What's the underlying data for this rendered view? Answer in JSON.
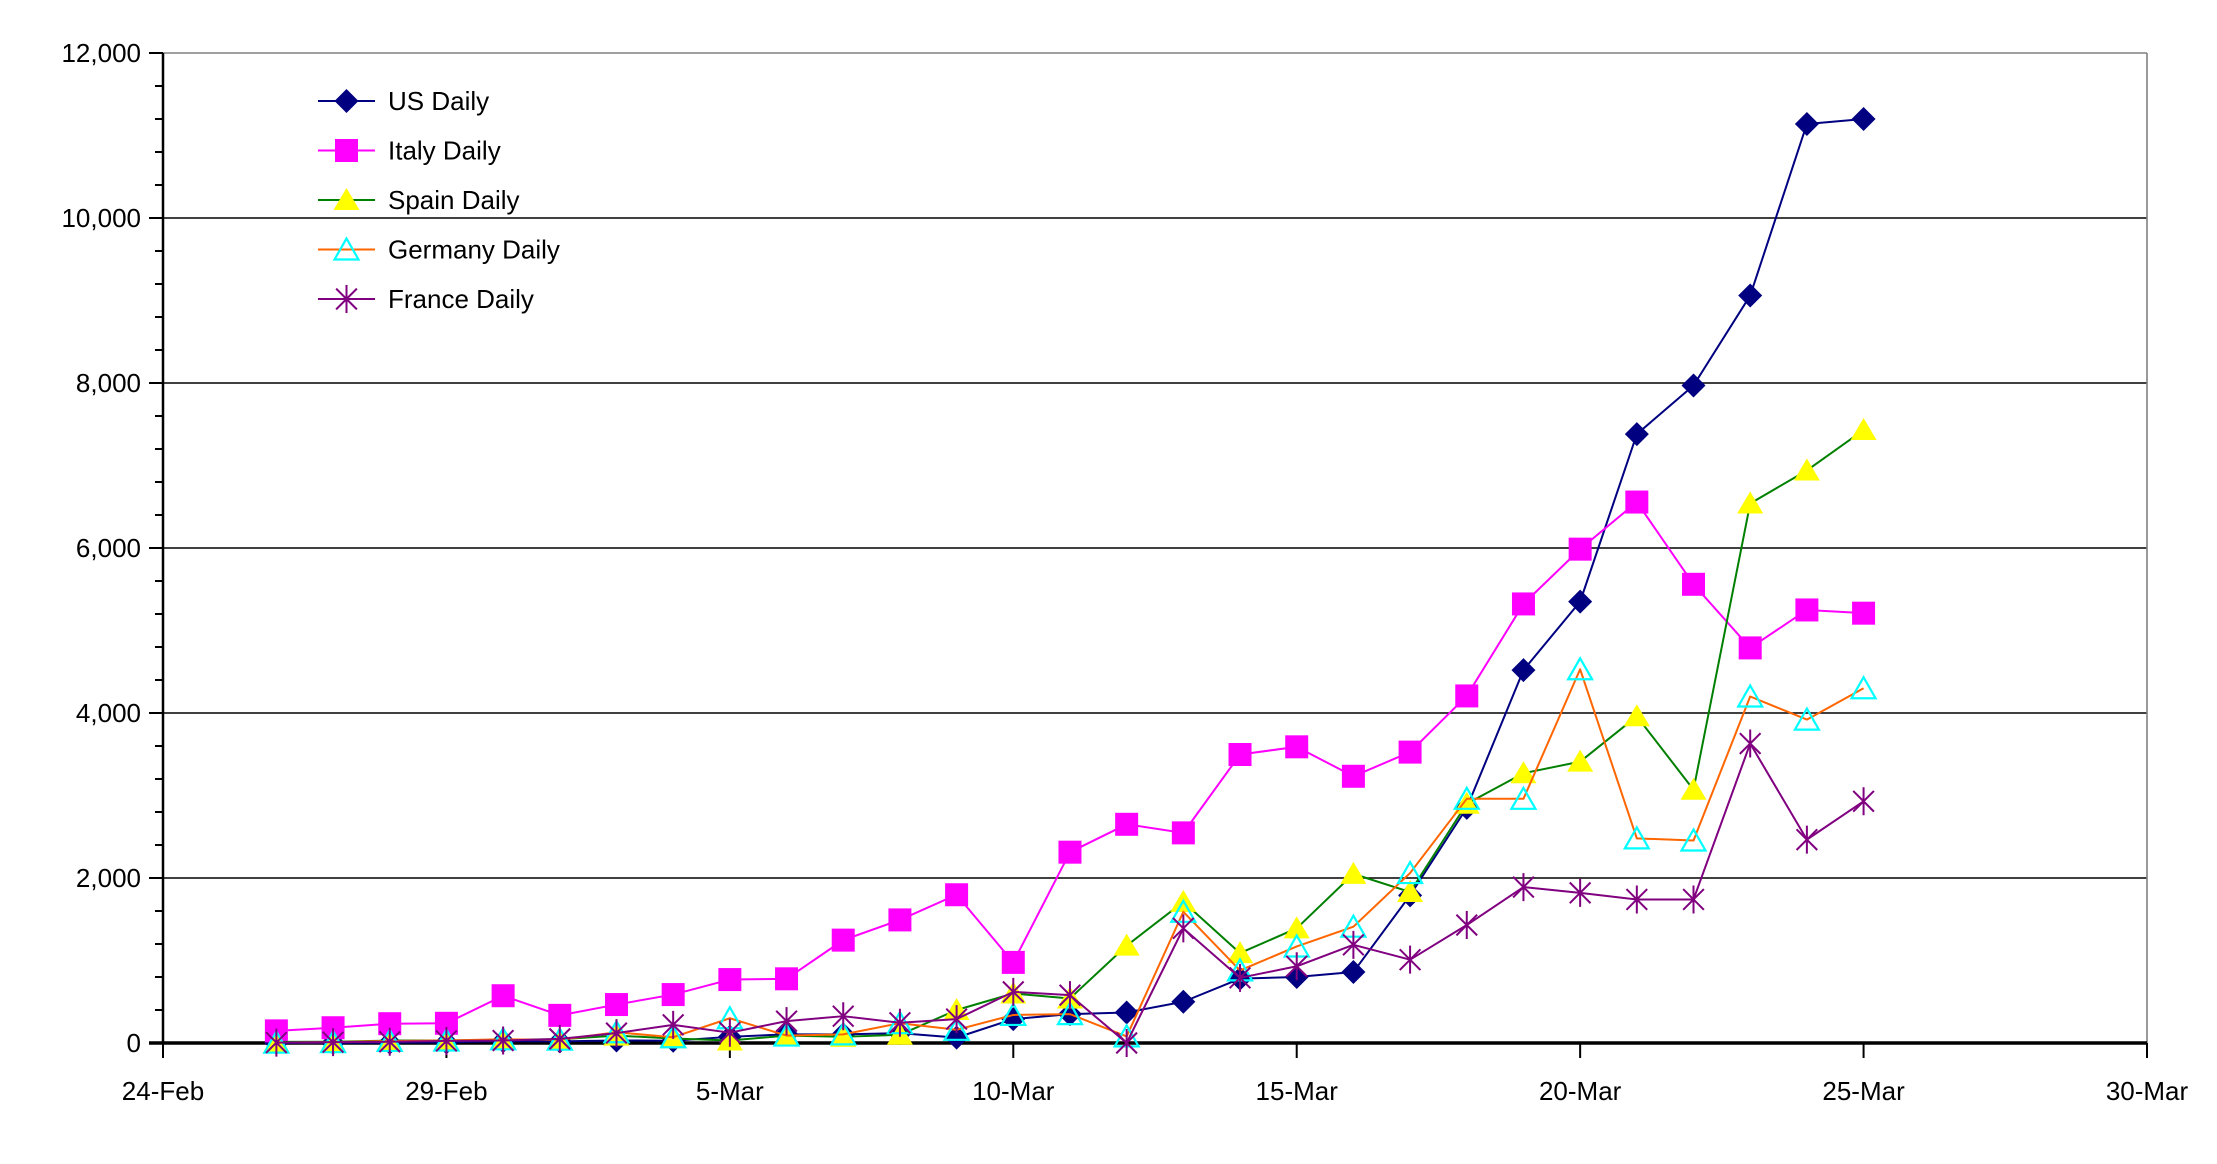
{
  "chart_data": {
    "type": "line",
    "title": "",
    "xlabel": "",
    "ylabel": "",
    "grid": true,
    "legend_position": "upper-left",
    "ylim": [
      0,
      12000
    ],
    "y_major_step": 2000,
    "y_minor_step": 400,
    "y_tick_labels": [
      "0",
      "2,000",
      "4,000",
      "6,000",
      "8,000",
      "10,000",
      "12,000"
    ],
    "x_tick_labels": [
      "24-Feb",
      "29-Feb",
      "5-Mar",
      "10-Mar",
      "15-Mar",
      "20-Mar",
      "25-Mar",
      "30-Mar"
    ],
    "x_total_days": 35,
    "data_start_day_offset": 2,
    "dates": [
      "26-Feb",
      "27-Feb",
      "28-Feb",
      "29-Feb",
      "1-Mar",
      "2-Mar",
      "3-Mar",
      "4-Mar",
      "5-Mar",
      "6-Mar",
      "7-Mar",
      "8-Mar",
      "9-Mar",
      "10-Mar",
      "11-Mar",
      "12-Mar",
      "13-Mar",
      "14-Mar",
      "15-Mar",
      "16-Mar",
      "17-Mar",
      "18-Mar",
      "19-Mar",
      "20-Mar",
      "21-Mar",
      "22-Mar",
      "23-Mar",
      "24-Mar",
      "25-Mar"
    ],
    "series": [
      {
        "name": "US Daily",
        "line_color": "#000080",
        "marker": "diamond",
        "marker_color": "#000080",
        "values": [
          0,
          2,
          4,
          7,
          23,
          20,
          31,
          28,
          75,
          105,
          105,
          120,
          65,
          290,
          350,
          370,
          500,
          780,
          800,
          860,
          1790,
          2850,
          4520,
          5350,
          7380,
          7970,
          9060,
          11140,
          11200
        ]
      },
      {
        "name": "Italy Daily",
        "line_color": "#FF00FF",
        "marker": "square",
        "marker_color": "#FF00FF",
        "values": [
          147,
          185,
          234,
          239,
          573,
          335,
          466,
          587,
          769,
          778,
          1247,
          1492,
          1797,
          977,
          2313,
          2651,
          2547,
          3497,
          3590,
          3233,
          3526,
          4207,
          5322,
          5986,
          6557,
          5560,
          4789,
          5249,
          5210
        ]
      },
      {
        "name": "Spain Daily",
        "line_color": "#008000",
        "marker": "triangle",
        "marker_color": "#FFFF00",
        "values": [
          13,
          15,
          30,
          30,
          40,
          45,
          90,
          55,
          30,
          90,
          75,
          100,
          400,
          600,
          540,
          1180,
          1710,
          1090,
          1390,
          2050,
          1830,
          2900,
          3270,
          3410,
          3960,
          3070,
          6540,
          6940,
          7430
        ]
      },
      {
        "name": "Germany Daily",
        "line_color": "#FF6600",
        "marker": "triangle-open",
        "marker_color": "#00FFFF",
        "values": [
          5,
          10,
          25,
          30,
          45,
          40,
          130,
          70,
          300,
          90,
          105,
          240,
          160,
          340,
          350,
          80,
          1590,
          880,
          1170,
          1410,
          2060,
          2960,
          2960,
          4530,
          2480,
          2455,
          4200,
          3920,
          4300
        ]
      },
      {
        "name": "France Daily",
        "line_color": "#800080",
        "marker": "star",
        "marker_color": "#800080",
        "values": [
          5,
          10,
          15,
          25,
          30,
          50,
          120,
          220,
          125,
          265,
          325,
          245,
          290,
          620,
          580,
          0,
          1390,
          790,
          930,
          1190,
          1010,
          1430,
          1890,
          1820,
          1740,
          1740,
          3630,
          2465,
          2930
        ]
      }
    ]
  }
}
